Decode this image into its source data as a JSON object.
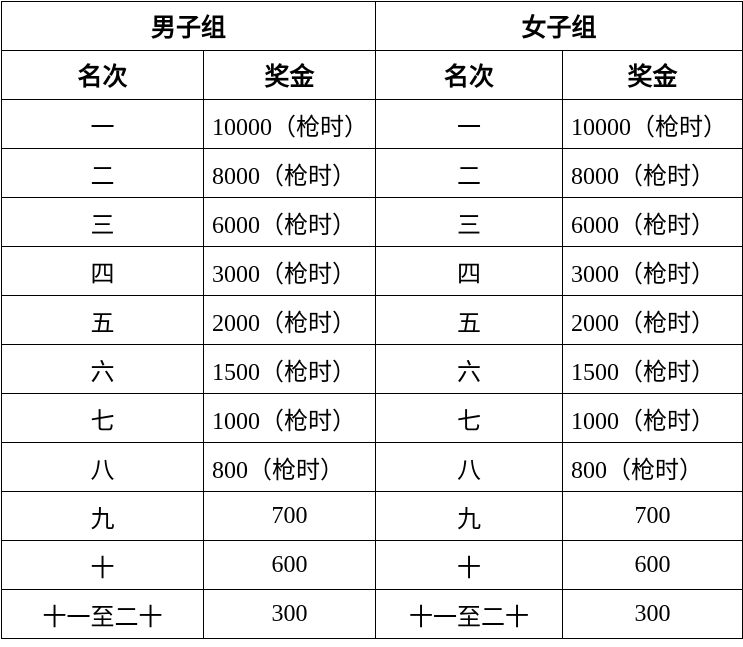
{
  "table": {
    "groups": [
      "男子组",
      "女子组"
    ],
    "columns": [
      "名次",
      "奖金",
      "名次",
      "奖金"
    ],
    "rows": [
      [
        "一",
        "10000（枪时）",
        "一",
        "10000（枪时）"
      ],
      [
        "二",
        "8000（枪时）",
        "二",
        "8000（枪时）"
      ],
      [
        "三",
        "6000（枪时）",
        "三",
        "6000（枪时）"
      ],
      [
        "四",
        "3000（枪时）",
        "四",
        "3000（枪时）"
      ],
      [
        "五",
        "2000（枪时）",
        "五",
        "2000（枪时）"
      ],
      [
        "六",
        "1500（枪时）",
        "六",
        "1500（枪时）"
      ],
      [
        "七",
        "1000（枪时）",
        "七",
        "1000（枪时）"
      ],
      [
        "八",
        "800（枪时）",
        "八",
        "800（枪时）"
      ],
      [
        "九",
        "700",
        "九",
        "700"
      ],
      [
        "十",
        "600",
        "十",
        "600"
      ],
      [
        "十一至二十",
        "300",
        "十一至二十",
        "300"
      ]
    ]
  }
}
